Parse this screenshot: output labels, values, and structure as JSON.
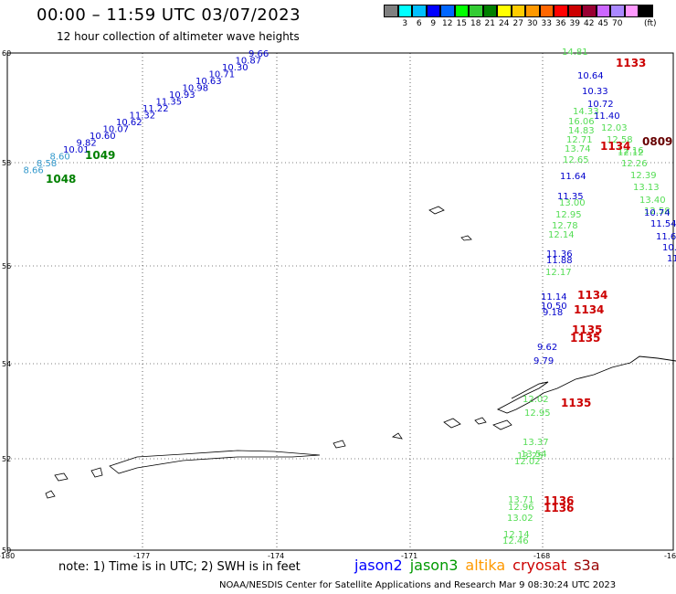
{
  "header": {
    "title": "00:00 – 11:59 UTC 03/07/2023",
    "subtitle": "12 hour collection of altimeter wave heights"
  },
  "color_scale": {
    "colors": [
      "#7f7f7f",
      "#00ffff",
      "#00bfff",
      "#0000ff",
      "#0066ff",
      "#00ff00",
      "#33cc33",
      "#008000",
      "#ffff00",
      "#ffcc00",
      "#ff9900",
      "#ff6600",
      "#ff0000",
      "#cc0000",
      "#990033",
      "#cc66ff",
      "#aa88ff",
      "#ff99ff",
      "#000000"
    ],
    "labels": [
      "3",
      "6",
      "9",
      "12",
      "15",
      "18",
      "21",
      "24",
      "27",
      "30",
      "33",
      "36",
      "39",
      "42",
      "45",
      "70"
    ],
    "unit": "(ft)"
  },
  "axes": {
    "lat_labels": [
      "60",
      "58",
      "56",
      "54",
      "52",
      "50"
    ],
    "lon_labels": [
      "-180",
      "-177",
      "-174",
      "-171",
      "-168",
      "-16"
    ]
  },
  "tracks": [
    {
      "name": "jason2-west",
      "color": "#0000cc",
      "points": [
        [
          "9.66"
        ],
        [
          "10.87"
        ],
        [
          "10.30"
        ],
        [
          "10.71"
        ],
        [
          "10.63"
        ],
        [
          "10.98"
        ],
        [
          "10.93"
        ],
        [
          "11.35"
        ],
        [
          "11.22"
        ],
        [
          "11.32"
        ],
        [
          "10.62"
        ],
        [
          "10.07"
        ],
        [
          "10.60"
        ],
        [
          "9.82"
        ],
        [
          "10.01"
        ],
        [
          "8.60"
        ],
        [
          "8.58"
        ],
        [
          "8.66"
        ]
      ]
    },
    {
      "name": "jason3-east",
      "color": "#33cc33",
      "values": [
        "14.81",
        "14.33",
        "16.06",
        "14.83",
        "12.71",
        "13.74",
        "12.65",
        "13.00",
        "12.95",
        "12.78",
        "12.14",
        "12.17",
        "12.39",
        "13.13",
        "13.40",
        "12.58",
        "12.26",
        "12.12",
        "12.03",
        "12.58",
        "12.16",
        "12.02",
        "12.95",
        "13.37",
        "13.54",
        "13.25",
        "12.02",
        "13.71",
        "12.96",
        "13.02",
        "12.14",
        "12.46"
      ]
    },
    {
      "name": "jason2-east",
      "color": "#0000cc",
      "values": [
        "10.64",
        "10.33",
        "10.72",
        "11.40",
        "11.64",
        "11.35",
        "11.36",
        "11.88",
        "11.14",
        "10.50",
        "9.18",
        "9.62",
        "9.79",
        "10.74",
        "11.54",
        "11.6",
        "10.",
        "11"
      ]
    }
  ],
  "highlights": [
    {
      "label": "1048",
      "color": "#008000"
    },
    {
      "label": "1049",
      "color": "#008000"
    },
    {
      "label": "1133",
      "color": "#cc0000"
    },
    {
      "label": "1134",
      "color": "#cc0000"
    },
    {
      "label": "0809",
      "color": "#660000"
    },
    {
      "label": "1134",
      "color": "#cc0000"
    },
    {
      "label": "1134",
      "color": "#cc0000"
    },
    {
      "label": "1135",
      "color": "#cc0000"
    },
    {
      "label": "1135",
      "color": "#cc0000"
    },
    {
      "label": "1135",
      "color": "#cc0000"
    },
    {
      "label": "1136",
      "color": "#cc0000"
    },
    {
      "label": "1136",
      "color": "#cc0000"
    }
  ],
  "footer": {
    "note": "note: 1) Time is in UTC; 2) SWH is in feet",
    "legend": [
      {
        "label": "jason2",
        "color": "#0000ff"
      },
      {
        "label": "jason3",
        "color": "#009900"
      },
      {
        "label": "altika",
        "color": "#ff9900"
      },
      {
        "label": "cryosat",
        "color": "#cc0000"
      },
      {
        "label": "s3a",
        "color": "#990000"
      }
    ],
    "credit": "NOAA/NESDIS Center for Satellite Applications and Research   Mar  9 08:30:24 UTC 2023"
  }
}
